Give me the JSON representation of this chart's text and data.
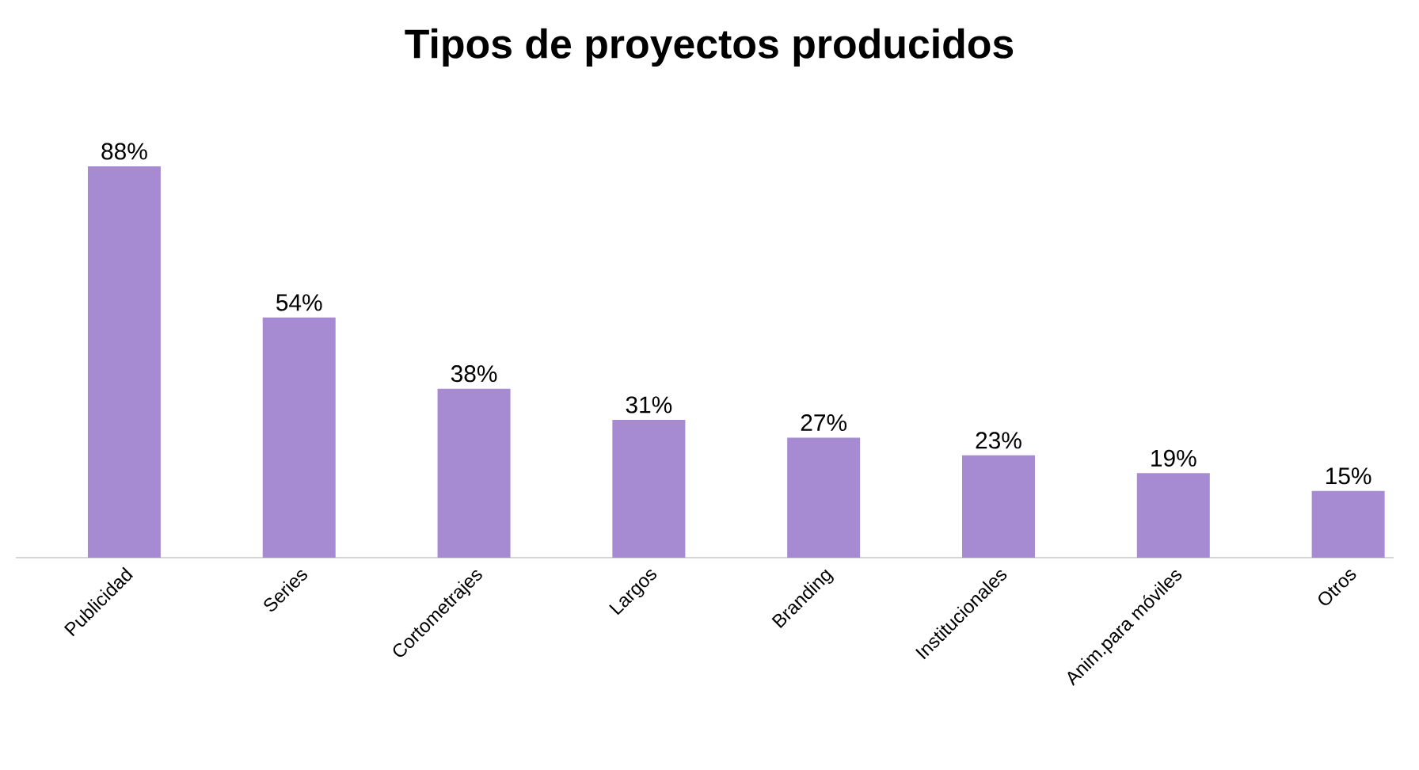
{
  "chart_data": {
    "type": "bar",
    "title": "Tipos de proyectos producidos",
    "categories": [
      "Publicidad",
      "Series",
      "Cortometrajes",
      "Largos",
      "Branding",
      "Institucionales",
      "Anim.para móviles",
      "Otros"
    ],
    "values": [
      88,
      54,
      38,
      31,
      27,
      23,
      19,
      15
    ],
    "value_labels": [
      "88%",
      "54%",
      "38%",
      "31%",
      "27%",
      "23%",
      "19%",
      "15%"
    ],
    "color": "#a78bd2"
  }
}
